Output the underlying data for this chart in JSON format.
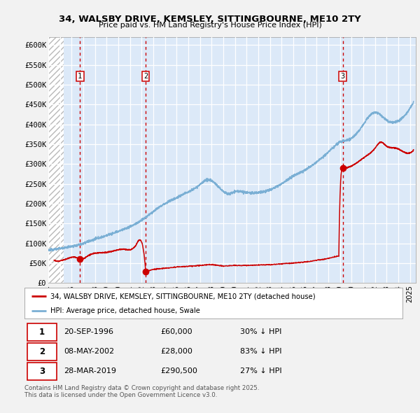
{
  "title1": "34, WALSBY DRIVE, KEMSLEY, SITTINGBOURNE, ME10 2TY",
  "title2": "Price paid vs. HM Land Registry's House Price Index (HPI)",
  "xlim_start": 1994.0,
  "xlim_end": 2025.5,
  "ylim_min": 0,
  "ylim_max": 620000,
  "yticks": [
    0,
    50000,
    100000,
    150000,
    200000,
    250000,
    300000,
    350000,
    400000,
    450000,
    500000,
    550000,
    600000
  ],
  "ytick_labels": [
    "£0",
    "£50K",
    "£100K",
    "£150K",
    "£200K",
    "£250K",
    "£300K",
    "£350K",
    "£400K",
    "£450K",
    "£500K",
    "£550K",
    "£600K"
  ],
  "bg_color": "#dce9f8",
  "grid_color": "#ffffff",
  "hatch_end": 1995.3,
  "sale_dates": [
    1996.72,
    2002.35,
    2019.23
  ],
  "sale_prices": [
    60000,
    28000,
    290500
  ],
  "sale_labels": [
    "1",
    "2",
    "3"
  ],
  "sale_color": "#cc0000",
  "hpi_color": "#7aafd4",
  "legend_label_red": "34, WALSBY DRIVE, KEMSLEY, SITTINGBOURNE, ME10 2TY (detached house)",
  "legend_label_blue": "HPI: Average price, detached house, Swale",
  "table_data": [
    [
      "1",
      "20-SEP-1996",
      "£60,000",
      "30% ↓ HPI"
    ],
    [
      "2",
      "08-MAY-2002",
      "£28,000",
      "83% ↓ HPI"
    ],
    [
      "3",
      "28-MAR-2019",
      "£290,500",
      "27% ↓ HPI"
    ]
  ],
  "footnote": "Contains HM Land Registry data © Crown copyright and database right 2025.\nThis data is licensed under the Open Government Licence v3.0.",
  "hpi_anchors_x": [
    1994.0,
    1995.0,
    1996.0,
    1997.0,
    1998.0,
    1999.0,
    2000.0,
    2001.0,
    2002.0,
    2003.0,
    2004.0,
    2005.0,
    2006.0,
    2007.0,
    2007.8,
    2008.5,
    2009.5,
    2010.0,
    2011.0,
    2012.0,
    2013.0,
    2014.0,
    2015.0,
    2016.0,
    2017.0,
    2018.0,
    2019.0,
    2020.0,
    2021.0,
    2022.0,
    2022.8,
    2023.5,
    2024.3,
    2025.3
  ],
  "hpi_anchors_y": [
    82000,
    87000,
    92000,
    100000,
    110000,
    120000,
    130000,
    142000,
    158000,
    180000,
    200000,
    215000,
    230000,
    248000,
    260000,
    245000,
    225000,
    230000,
    228000,
    228000,
    235000,
    250000,
    270000,
    285000,
    305000,
    330000,
    355000,
    365000,
    400000,
    430000,
    415000,
    405000,
    415000,
    455000
  ],
  "red_anchors_x": [
    1994.5,
    1995.5,
    1996.5,
    1996.72,
    1997.5,
    1998.5,
    1999.5,
    2000.5,
    2001.5,
    2001.9,
    2002.35,
    2002.36,
    2003.0,
    2004.0,
    2005.0,
    2006.0,
    2007.0,
    2008.0,
    2009.0,
    2010.0,
    2011.0,
    2012.0,
    2013.0,
    2014.0,
    2015.0,
    2016.0,
    2017.0,
    2018.0,
    2018.9,
    2019.23,
    2019.24,
    2020.0,
    2021.0,
    2022.0,
    2022.5,
    2023.0,
    2023.8,
    2024.5,
    2025.3
  ],
  "red_anchors_y": [
    57000,
    60000,
    63000,
    60000,
    70000,
    76000,
    80000,
    85000,
    95000,
    108000,
    28000,
    28000,
    34000,
    37000,
    40000,
    42000,
    44000,
    46000,
    43000,
    44000,
    44000,
    45000,
    46000,
    48000,
    50000,
    53000,
    57000,
    62000,
    68000,
    290500,
    290500,
    295000,
    315000,
    340000,
    355000,
    345000,
    340000,
    330000,
    335000
  ]
}
